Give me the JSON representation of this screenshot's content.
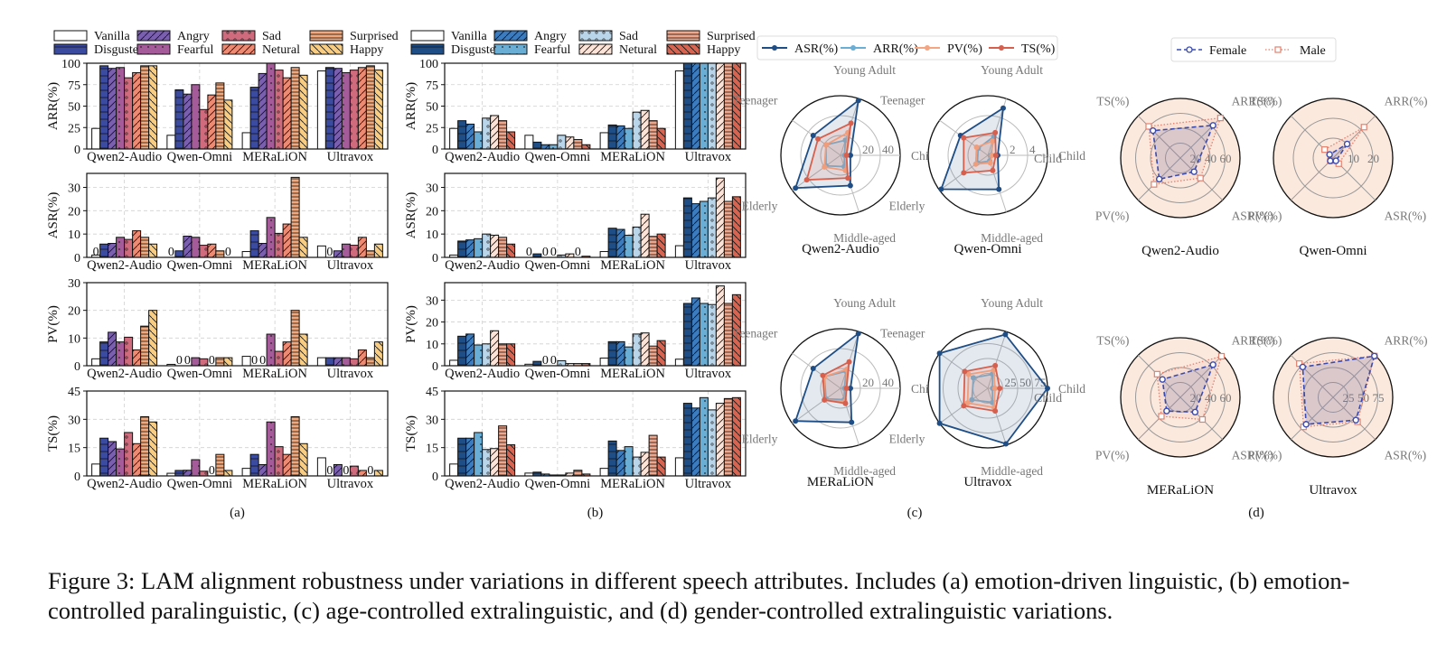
{
  "caption": "Figure 3: LAM alignment robustness under variations in different speech attributes. Includes (a) emotion-driven linguistic, (b) emotion-controlled paralinguistic, (c) age-controlled extralinguistic, and (d) gender-controlled extralinguistic variations.",
  "colors": {
    "emotion_a": [
      "#ffffff",
      "#3b4ba0",
      "#7a5fb0",
      "#a55a9a",
      "#d06a7d",
      "#ee8a72",
      "#f2a87a",
      "#f8cd82"
    ],
    "emotion_b": [
      "#ffffff",
      "#1f4e86",
      "#3a7cbf",
      "#6aaed6",
      "#b8d5ea",
      "#fbe3d7",
      "#f0a68a",
      "#d66450"
    ],
    "age": {
      "ASR": "#1f4e86",
      "ARR": "#6aaed6",
      "PV": "#f4a582",
      "TS": "#d6604d"
    },
    "gender": {
      "Female": "#3a4bb0",
      "Male": "#e4806e",
      "face": "#fbe9de"
    }
  },
  "chart_data": [
    {
      "id": "a",
      "type": "bar",
      "panel_label": "(a)",
      "legend": [
        "Vanilla",
        "Disgusted",
        "Angry",
        "Fearful",
        "Sad",
        "Netural",
        "Surprised",
        "Happy"
      ],
      "categories": [
        "Qwen2-Audio",
        "Qwen-Omni",
        "MERaLiON",
        "Ultravox"
      ],
      "subplots": [
        {
          "ylabel": "ARR(%)",
          "ylim": [
            0,
            100
          ],
          "yticks": [
            0,
            25,
            50,
            75,
            100
          ],
          "values": [
            [
              24,
              97,
              94,
              95,
              83,
              89,
              97,
              97
            ],
            [
              16,
              69,
              64,
              75,
              46,
              63,
              77,
              57
            ],
            [
              19,
              72,
              88,
              100,
              92,
              83,
              95,
              86
            ],
            [
              91,
              95,
              94,
              89,
              92,
              95,
              97,
              92
            ]
          ]
        },
        {
          "ylabel": "ASR(%)",
          "ylim": [
            0,
            36
          ],
          "yticks": [
            0,
            10,
            20,
            30
          ],
          "values": [
            [
              1,
              5.7,
              6,
              8.6,
              7.7,
              11.4,
              8.6,
              5.7
            ],
            [
              0,
              2.8,
              9.1,
              8.6,
              5.2,
              5.7,
              2.8,
              0
            ],
            [
              2.5,
              11.4,
              6,
              17.1,
              10.3,
              14.3,
              34.3,
              8.6
            ],
            [
              4.9,
              0,
              2.8,
              5.7,
              5.2,
              8.6,
              2.8,
              5.7
            ]
          ],
          "zero_labels": [
            [
              0,
              0
            ],
            [
              1,
              0
            ],
            [
              1,
              7
            ],
            [
              3,
              1
            ]
          ]
        },
        {
          "ylabel": "PV(%)",
          "ylim": [
            0,
            30
          ],
          "yticks": [
            0,
            10,
            20,
            30
          ],
          "values": [
            [
              2.5,
              8.6,
              12.1,
              8.6,
              10.3,
              5.7,
              14.3,
              20
            ],
            [
              0.5,
              0,
              0,
              2.9,
              2.5,
              0,
              2.9,
              2.9
            ],
            [
              3.4,
              0,
              0,
              11.4,
              5.2,
              8.6,
              20,
              11.4
            ],
            [
              2.9,
              2.9,
              2.9,
              2.9,
              2.5,
              5.7,
              2.9,
              8.6
            ]
          ],
          "zero_labels": [
            [
              1,
              1
            ],
            [
              1,
              2
            ],
            [
              1,
              5
            ],
            [
              2,
              1
            ],
            [
              2,
              2
            ]
          ]
        },
        {
          "ylabel": "TS(%)",
          "ylim": [
            0,
            45
          ],
          "yticks": [
            0,
            15,
            30,
            45
          ],
          "values": [
            [
              6.3,
              20,
              18.2,
              14.3,
              23,
              17.1,
              31.4,
              28.6
            ],
            [
              1.4,
              2.9,
              3,
              8.6,
              2.5,
              0,
              11.4,
              2.9
            ],
            [
              4,
              11.4,
              6,
              28.6,
              15.5,
              11.4,
              31.4,
              17.1
            ],
            [
              9.6,
              0,
              6,
              0,
              5.2,
              2.9,
              0,
              2.9
            ]
          ],
          "zero_labels": [
            [
              1,
              5
            ],
            [
              3,
              1
            ],
            [
              3,
              3
            ],
            [
              3,
              6
            ]
          ]
        }
      ]
    },
    {
      "id": "b",
      "type": "bar",
      "panel_label": "(b)",
      "legend": [
        "Vanilla",
        "Disgusted",
        "Angry",
        "Fearful",
        "Sad",
        "Netural",
        "Surprised",
        "Happy"
      ],
      "categories": [
        "Qwen2-Audio",
        "Qwen-Omni",
        "MERaLiON",
        "Ultravox"
      ],
      "subplots": [
        {
          "ylabel": "ARR(%)",
          "ylim": [
            0,
            100
          ],
          "yticks": [
            0,
            25,
            50,
            75,
            100
          ],
          "values": [
            [
              24,
              33,
              29,
              20,
              36,
              39,
              33,
              20
            ],
            [
              16,
              8,
              5,
              5,
              16,
              14,
              11,
              5
            ],
            [
              19,
              28,
              27,
              24,
              43,
              45,
              33,
              24
            ],
            [
              91,
              100,
              100,
              100,
              100,
              100,
              100,
              100
            ]
          ]
        },
        {
          "ylabel": "ASR(%)",
          "ylim": [
            0,
            36
          ],
          "yticks": [
            0,
            10,
            20,
            30
          ],
          "values": [
            [
              1,
              7,
              7.5,
              8,
              10,
              9.5,
              8.6,
              5.7
            ],
            [
              0,
              1.5,
              0,
              0,
              1,
              1.5,
              0,
              0.5
            ],
            [
              2.5,
              12.5,
              12,
              9.5,
              13,
              18.5,
              9,
              10
            ],
            [
              5,
              25.5,
              23,
              24,
              25.5,
              34,
              24,
              26
            ]
          ],
          "zero_labels": [
            [
              1,
              0
            ],
            [
              1,
              2
            ],
            [
              1,
              3
            ],
            [
              1,
              6
            ]
          ]
        },
        {
          "ylabel": "PV(%)",
          "ylim": [
            0,
            38
          ],
          "yticks": [
            0,
            10,
            20,
            30
          ],
          "values": [
            [
              2.5,
              13.5,
              14.5,
              9.5,
              10,
              16,
              10,
              10
            ],
            [
              0.7,
              2,
              0,
              0,
              2.3,
              1,
              1,
              1
            ],
            [
              3.5,
              11,
              11,
              8.6,
              14.5,
              15,
              9,
              11.5
            ],
            [
              3,
              28.5,
              31,
              28.5,
              28,
              36.5,
              28.5,
              32.5
            ]
          ],
          "zero_labels": [
            [
              1,
              2
            ],
            [
              1,
              3
            ]
          ]
        },
        {
          "ylabel": "TS(%)",
          "ylim": [
            0,
            45
          ],
          "yticks": [
            0,
            15,
            30,
            45
          ],
          "values": [
            [
              6.3,
              20,
              20,
              23,
              14,
              14.5,
              26.5,
              16.5
            ],
            [
              1.5,
              2,
              1,
              0.5,
              0.5,
              1.5,
              3,
              1
            ],
            [
              4,
              18.5,
              13.5,
              15.5,
              10,
              12.5,
              21.5,
              10
            ],
            [
              9.6,
              38.5,
              36,
              41.5,
              35,
              38.5,
              41,
              41.5
            ]
          ]
        }
      ]
    },
    {
      "id": "c",
      "type": "radar",
      "panel_label": "(c)",
      "axes": [
        "Young Adult",
        "Child",
        "Middle-aged",
        "Elderly",
        "Teenager"
      ],
      "legend": [
        "ASR(%)",
        "ARR(%)",
        "PV(%)",
        "TS(%)"
      ],
      "models": [
        {
          "name": "Qwen2-Audio",
          "rmax": 60,
          "ring_labels": [
            "20",
            "40"
          ],
          "rings": [
            20,
            40,
            60
          ],
          "series": {
            "ASR": [
              58,
              10,
              32,
              56,
              34
            ],
            "ARR": [
              16,
              4,
              12,
              18,
              18
            ],
            "PV": [
              24,
              6,
              16,
              20,
              18
            ],
            "TS": [
              34,
              6,
              24,
              42,
              28
            ]
          }
        },
        {
          "name": "Qwen-Omni",
          "rmax": 6,
          "ring_labels": [
            "2",
            "4"
          ],
          "rings": [
            2,
            4,
            6
          ],
          "series": {
            "ASR": [
              5,
              1,
              3.6,
              5.8,
              3.4
            ],
            "ARR": [
              2,
              0.3,
              0.6,
              1.3,
              1.2
            ],
            "PV": [
              1.5,
              0.4,
              0.8,
              1.5,
              1.4
            ],
            "TS": [
              2.4,
              0.8,
              1.6,
              3,
              3
            ]
          }
        },
        {
          "name": "MERaLiON",
          "rmax": 60,
          "ring_labels": [
            "20",
            "40"
          ],
          "rings": [
            20,
            40,
            60
          ],
          "series": {
            "ASR": [
              58,
              10,
              36,
              56,
              34
            ],
            "ARR": [
              18,
              4,
              12,
              18,
              20
            ],
            "PV": [
              20,
              6,
              14,
              20,
              20
            ],
            "TS": [
              28,
              6,
              16,
              20,
              22
            ]
          }
        },
        {
          "name": "Ultravox",
          "rmax": 100,
          "ring_labels": [
            "25",
            "50",
            "75"
          ],
          "rings": [
            25,
            50,
            75,
            100
          ],
          "series": {
            "ASR": [
              95,
              100,
              98,
              100,
              100
            ],
            "ARR": [
              25,
              8,
              25,
              33,
              30
            ],
            "PV": [
              32,
              12,
              34,
              42,
              40
            ],
            "TS": [
              40,
              20,
              40,
              50,
              48
            ]
          }
        }
      ]
    },
    {
      "id": "d",
      "type": "radar",
      "panel_label": "(d)",
      "axes": [
        "ARR(%)",
        "ASR(%)",
        "PV(%)",
        "TS(%)"
      ],
      "side_label": "Child",
      "legend": [
        "Female",
        "Male"
      ],
      "models": [
        {
          "name": "Qwen2-Audio",
          "rmax": 80,
          "ring_labels": [
            "20",
            "40",
            "60"
          ],
          "rings": [
            20,
            40,
            60,
            80
          ],
          "series": {
            "Female": [
              62,
              26,
              40,
              52
            ],
            "Male": [
              76,
              38,
              50,
              60
            ]
          }
        },
        {
          "name": "Qwen-Omni",
          "rmax": 30,
          "ring_labels": [
            "10",
            "20"
          ],
          "rings": [
            10,
            20,
            30
          ],
          "series": {
            "Female": [
              10,
              2,
              2,
              2.5
            ],
            "Male": [
              22,
              4,
              2,
              6
            ]
          }
        },
        {
          "name": "MERaLiON",
          "rmax": 80,
          "ring_labels": [
            "20",
            "40",
            "60"
          ],
          "rings": [
            20,
            40,
            60,
            80
          ],
          "series": {
            "Female": [
              62,
              28,
              26,
              34
            ],
            "Male": [
              78,
              42,
              36,
              44
            ]
          }
        },
        {
          "name": "Ultravox",
          "rmax": 100,
          "ring_labels": [
            "25",
            "50",
            "75"
          ],
          "rings": [
            25,
            50,
            75,
            100
          ],
          "series": {
            "Female": [
              98,
              54,
              64,
              72
            ],
            "Male": [
              98,
              58,
              70,
              80
            ]
          }
        }
      ]
    }
  ]
}
